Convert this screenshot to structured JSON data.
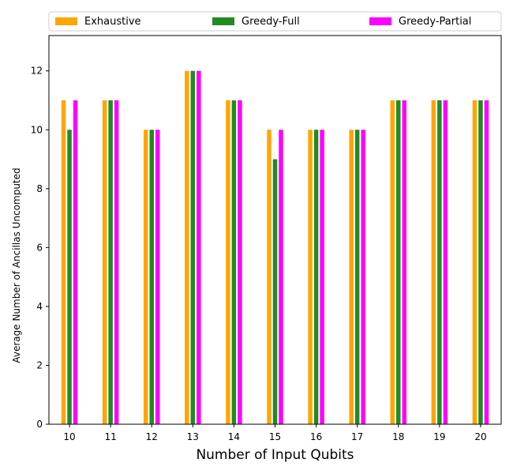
{
  "chart_data": {
    "type": "bar",
    "categories": [
      "10",
      "11",
      "12",
      "13",
      "14",
      "15",
      "16",
      "17",
      "18",
      "19",
      "20"
    ],
    "series": [
      {
        "name": "Exhaustive",
        "color": "#ffa500",
        "values": [
          11,
          11,
          10,
          12,
          11,
          10,
          10,
          10,
          11,
          11,
          11
        ]
      },
      {
        "name": "Greedy-Full",
        "color": "#228b22",
        "values": [
          10,
          11,
          10,
          12,
          11,
          9,
          10,
          10,
          11,
          11,
          11
        ]
      },
      {
        "name": "Greedy-Partial",
        "color": "#ff00ff",
        "values": [
          11,
          11,
          10,
          12,
          11,
          10,
          10,
          10,
          11,
          11,
          11
        ]
      }
    ],
    "xlabel": "Number of Input Qubits",
    "ylabel": "Average Number of Ancillas Uncomputed",
    "ylim": [
      0,
      13.2
    ],
    "yticks": [
      0,
      2,
      4,
      6,
      8,
      10,
      12
    ],
    "legend": "top",
    "grid": false
  }
}
